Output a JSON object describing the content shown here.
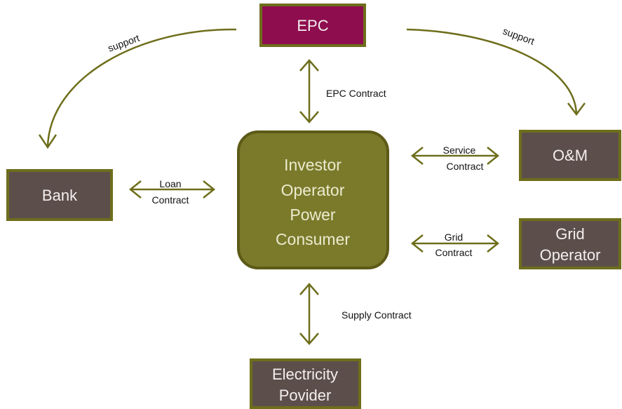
{
  "nodes": [
    {
      "label": "EPC"
    },
    {
      "lines": [
        "Investor",
        "Operator",
        "Power",
        "Consumer"
      ]
    },
    {
      "label": "Bank"
    },
    {
      "label": "O&M"
    },
    {
      "lines": [
        "Grid",
        "Operator"
      ]
    },
    {
      "lines": [
        "Electricity",
        "Povider"
      ]
    }
  ],
  "edges": [
    {
      "label": "support"
    },
    {
      "label": "support"
    },
    {
      "label": "EPC Contract"
    },
    {
      "lines": [
        "Service",
        "Contract"
      ]
    },
    {
      "lines": [
        "Loan",
        "Contract"
      ]
    },
    {
      "lines": [
        "Grid",
        "Contract"
      ]
    },
    {
      "label": "Supply Contract"
    }
  ]
}
